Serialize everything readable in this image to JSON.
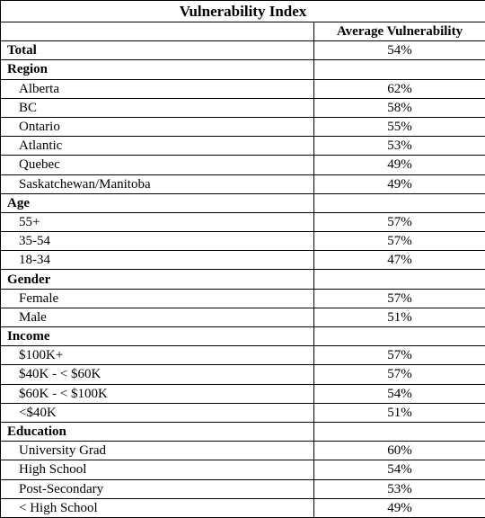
{
  "table": {
    "title": "Vulnerability Index",
    "column_header": "Average Vulnerability",
    "total": {
      "label": "Total",
      "value": "54%"
    },
    "groups": [
      {
        "label": "Region",
        "items": [
          {
            "label": "Alberta",
            "value": "62%"
          },
          {
            "label": "BC",
            "value": "58%"
          },
          {
            "label": "Ontario",
            "value": "55%"
          },
          {
            "label": "Atlantic",
            "value": "53%"
          },
          {
            "label": "Quebec",
            "value": "49%"
          },
          {
            "label": "Saskatchewan/Manitoba",
            "value": "49%"
          }
        ]
      },
      {
        "label": "Age",
        "items": [
          {
            "label": "55+",
            "value": "57%"
          },
          {
            "label": "35-54",
            "value": "57%"
          },
          {
            "label": "18-34",
            "value": "47%"
          }
        ]
      },
      {
        "label": "Gender",
        "items": [
          {
            "label": "Female",
            "value": "57%"
          },
          {
            "label": "Male",
            "value": "51%"
          }
        ]
      },
      {
        "label": "Income",
        "items": [
          {
            "label": "$100K+",
            "value": "57%"
          },
          {
            "label": "$40K - < $60K",
            "value": "57%"
          },
          {
            "label": "$60K - < $100K",
            "value": "54%"
          },
          {
            "label": "<$40K",
            "value": "51%"
          }
        ]
      },
      {
        "label": "Education",
        "items": [
          {
            "label": "University Grad",
            "value": "60%"
          },
          {
            "label": "High School",
            "value": "54%"
          },
          {
            "label": "Post-Secondary",
            "value": "53%"
          },
          {
            "label": "< High School",
            "value": "49%"
          }
        ]
      }
    ]
  }
}
